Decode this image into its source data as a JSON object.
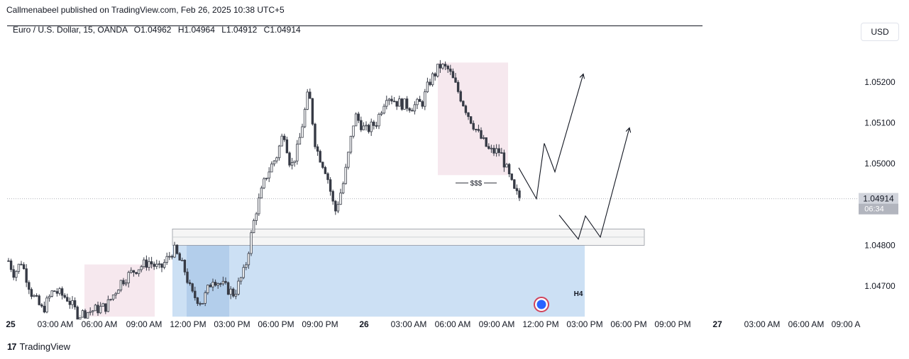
{
  "header": {
    "published": "Callmenabeel published on TradingView.com, Feb 26, 2025 10:38 UTC+5"
  },
  "legend": {
    "symbol": "Euro / U.S. Dollar, 15, OANDA",
    "open_label": "O",
    "open": "1.04962",
    "high_label": "H",
    "high": "1.04964",
    "low_label": "L",
    "low": "1.04912",
    "close_label": "C",
    "close": "1.04914"
  },
  "currency_button": "USD",
  "footer": {
    "logo": "TradingView"
  },
  "colors": {
    "axis_text": "#131722",
    "candle": "#363a45",
    "zone_blue": "#bbd6f0",
    "zone_pink": "#f6e8ee",
    "price_tag": "#5d606b"
  },
  "chart_data": {
    "type": "candlestick",
    "symbol": "EURUSD",
    "timeframe": "15",
    "price_axis": {
      "ticks": [
        "1.05200",
        "1.05100",
        "1.05000",
        "1.04800",
        "1.04700"
      ],
      "current_price": "1.04914",
      "countdown": "06:34"
    },
    "time_axis": {
      "ticks": [
        "25",
        "03:00 AM",
        "06:00 AM",
        "09:00 AM",
        "12:00 PM",
        "03:00 PM",
        "06:00 PM",
        "09:00 PM",
        "26",
        "03:00 AM",
        "06:00 AM",
        "09:00 AM",
        "12:00 PM",
        "03:00 PM",
        "06:00 PM",
        "09:00 PM",
        "27",
        "03:00 AM",
        "06:00 AM",
        "09:00 A"
      ]
    },
    "annotations": {
      "liquidity_label": "$$$",
      "zone_label": "H4",
      "demand_zone": {
        "top": 1.048,
        "bottom": 1.04625
      },
      "thin_zone": {
        "top": 1.0484,
        "bottom": 1.048
      },
      "pink_zone_left": {
        "top": 1.04753,
        "bottom": 1.04625
      },
      "pink_zone_top": {
        "top": 1.05248,
        "bottom": 1.04972
      },
      "resistance_line": 1.05338
    },
    "anchors": [
      {
        "x": 0,
        "p": 1.0483
      },
      {
        "x": 10,
        "p": 1.0477
      },
      {
        "x": 20,
        "p": 1.0473
      },
      {
        "x": 30,
        "p": 1.0476
      },
      {
        "x": 45,
        "p": 1.0468
      },
      {
        "x": 60,
        "p": 1.0464
      },
      {
        "x": 75,
        "p": 1.0469
      },
      {
        "x": 95,
        "p": 1.0467
      },
      {
        "x": 110,
        "p": 1.0463
      },
      {
        "x": 130,
        "p": 1.0464
      },
      {
        "x": 150,
        "p": 1.0465
      },
      {
        "x": 170,
        "p": 1.0471
      },
      {
        "x": 190,
        "p": 1.0474
      },
      {
        "x": 210,
        "p": 1.0476
      },
      {
        "x": 225,
        "p": 1.0474
      },
      {
        "x": 245,
        "p": 1.0479
      },
      {
        "x": 260,
        "p": 1.0474
      },
      {
        "x": 270,
        "p": 1.0468
      },
      {
        "x": 285,
        "p": 1.0466
      },
      {
        "x": 300,
        "p": 1.0472
      },
      {
        "x": 315,
        "p": 1.047
      },
      {
        "x": 330,
        "p": 1.0468
      },
      {
        "x": 345,
        "p": 1.0474
      },
      {
        "x": 360,
        "p": 1.0488
      },
      {
        "x": 375,
        "p": 1.0497
      },
      {
        "x": 390,
        "p": 1.0502
      },
      {
        "x": 400,
        "p": 1.0508
      },
      {
        "x": 410,
        "p": 1.0499
      },
      {
        "x": 420,
        "p": 1.0504
      },
      {
        "x": 435,
        "p": 1.0518
      },
      {
        "x": 445,
        "p": 1.0504
      },
      {
        "x": 460,
        "p": 1.0498
      },
      {
        "x": 472,
        "p": 1.0488
      },
      {
        "x": 485,
        "p": 1.0496
      },
      {
        "x": 500,
        "p": 1.0512
      },
      {
        "x": 515,
        "p": 1.0508
      },
      {
        "x": 530,
        "p": 1.051
      },
      {
        "x": 545,
        "p": 1.0517
      },
      {
        "x": 560,
        "p": 1.0515
      },
      {
        "x": 580,
        "p": 1.0514
      },
      {
        "x": 595,
        "p": 1.0515
      },
      {
        "x": 605,
        "p": 1.052
      },
      {
        "x": 620,
        "p": 1.0524
      },
      {
        "x": 632,
        "p": 1.0523
      },
      {
        "x": 645,
        "p": 1.0518
      },
      {
        "x": 660,
        "p": 1.0512
      },
      {
        "x": 675,
        "p": 1.0507
      },
      {
        "x": 690,
        "p": 1.0503
      },
      {
        "x": 705,
        "p": 1.0503
      },
      {
        "x": 715,
        "p": 1.0498
      },
      {
        "x": 725,
        "p": 1.0493
      },
      {
        "x": 734,
        "p": 1.04914
      }
    ],
    "projections": [
      [
        {
          "x": 731,
          "p": 1.0499
        },
        {
          "x": 756,
          "p": 1.04914
        },
        {
          "x": 767,
          "p": 1.0505
        },
        {
          "x": 782,
          "p": 1.0498
        },
        {
          "x": 822,
          "p": 1.0522
        }
      ],
      [
        {
          "x": 788,
          "p": 1.04874
        },
        {
          "x": 815,
          "p": 1.04815
        },
        {
          "x": 825,
          "p": 1.04872
        },
        {
          "x": 846,
          "p": 1.0482
        },
        {
          "x": 887,
          "p": 1.05088
        }
      ]
    ]
  }
}
